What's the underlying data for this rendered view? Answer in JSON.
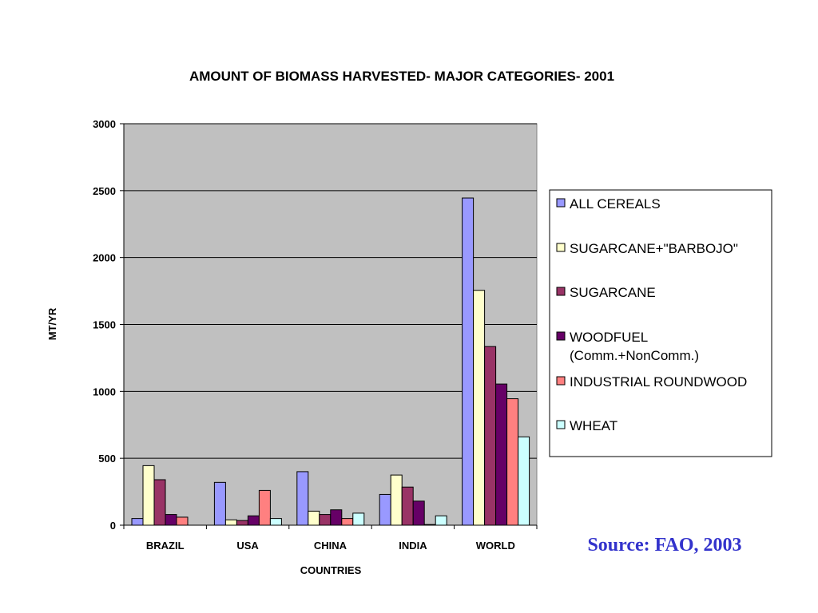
{
  "chart_data": {
    "type": "bar",
    "title": "AMOUNT  OF BIOMASS HARVESTED- MAJOR CATEGORIES- 2001",
    "xlabel": "COUNTRIES",
    "ylabel": "MT/YR",
    "ylim": [
      0,
      3000
    ],
    "yticks": [
      0,
      500,
      1000,
      1500,
      2000,
      2500,
      3000
    ],
    "grid": true,
    "legend_position": "right",
    "categories": [
      "BRAZIL",
      "USA",
      "CHINA",
      "INDIA",
      "WORLD"
    ],
    "series": [
      {
        "name": "ALL CEREALS",
        "color": "#9999ff",
        "values": [
          50,
          320,
          400,
          230,
          2445
        ]
      },
      {
        "name": "SUGARCANE+\"BARBOJO\"",
        "color": "#ffffcc",
        "values": [
          445,
          40,
          105,
          375,
          1755
        ]
      },
      {
        "name": "SUGARCANE",
        "color": "#993366",
        "values": [
          340,
          35,
          80,
          285,
          1335
        ]
      },
      {
        "name": "WOODFUEL (Comm.+NonComm.)",
        "name_lines": [
          "WOODFUEL",
          "(Comm.+NonComm.)"
        ],
        "color": "#660066",
        "values": [
          80,
          70,
          115,
          180,
          1055
        ]
      },
      {
        "name": "INDUSTRIAL ROUNDWOOD",
        "color": "#ff8080",
        "values": [
          60,
          260,
          50,
          5,
          945
        ]
      },
      {
        "name": "WHEAT",
        "color": "#ccffff",
        "values": [
          0,
          50,
          90,
          70,
          660
        ]
      }
    ],
    "plot_background": "#c0c0c0"
  },
  "source": {
    "text": "Source: FAO, 2003",
    "color": "#3333cc"
  }
}
